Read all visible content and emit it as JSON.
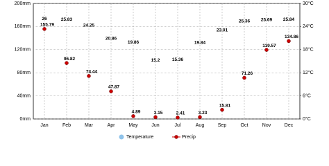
{
  "chart_data": {
    "type": "line",
    "categories": [
      "Jan",
      "Feb",
      "Mar",
      "Apr",
      "May",
      "Jun",
      "Jul",
      "Aug",
      "Sep",
      "Oct",
      "Nov",
      "Dec"
    ],
    "series": [
      {
        "name": "Temperature",
        "color": "#8fc3ea",
        "axis": "y2",
        "values": [
          26,
          25.83,
          24.25,
          20.86,
          19.86,
          15.2,
          15.36,
          19.84,
          23.01,
          25.36,
          25.69,
          25.84
        ]
      },
      {
        "name": "Precip",
        "color": "#cc0000",
        "values": [
          155.79,
          96.82,
          74.44,
          47.87,
          4.89,
          3.15,
          2.41,
          3.23,
          15.81,
          71.26,
          119.57,
          134.86
        ]
      }
    ],
    "ylim": [
      0,
      200
    ],
    "yticks": [
      {
        "value": 0,
        "label": "0mm"
      },
      {
        "value": 40,
        "label": "40mm"
      },
      {
        "value": 80,
        "label": "80mm"
      },
      {
        "value": 120,
        "label": "120mm"
      },
      {
        "value": 160,
        "label": "160mm"
      },
      {
        "value": 200,
        "label": "200mm"
      }
    ],
    "y2lim": [
      0,
      30
    ],
    "y2ticks": [
      {
        "value": 0,
        "label": "0°C"
      },
      {
        "value": 6,
        "label": "6°C"
      },
      {
        "value": 12,
        "label": "12°C"
      },
      {
        "value": 18,
        "label": "18°C"
      },
      {
        "value": 24,
        "label": "24°C"
      },
      {
        "value": 30,
        "label": "30°C"
      }
    ],
    "grid": true
  }
}
